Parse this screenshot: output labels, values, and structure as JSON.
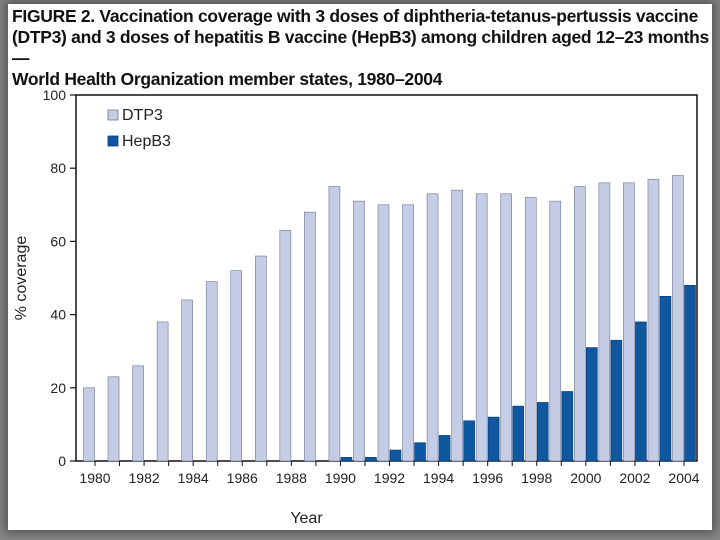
{
  "chart_data": {
    "type": "bar",
    "title": "FIGURE 2. Vaccination coverage with 3 doses of diphtheria-tetanus-pertussis vaccine (DTP3) and 3 doses of hepatitis B vaccine (HepB3) among children aged 12–23 months — World Health Organization member states, 1980–2004",
    "title_lines": [
      "FIGURE 2. Vaccination coverage with 3 doses of diphtheria-tetanus-pertussis vaccine",
      "(DTP3) and 3 doses of hepatitis B vaccine (HepB3) among children aged 12–23 months —",
      "World Health Organization member states, 1980–2004"
    ],
    "xlabel": "Year",
    "ylabel": "% coverage",
    "ylim": [
      0,
      100
    ],
    "yticks": [
      0,
      20,
      40,
      60,
      80,
      100
    ],
    "xtick_labels": [
      "1980",
      "1982",
      "1984",
      "1986",
      "1988",
      "1990",
      "1992",
      "1994",
      "1996",
      "1998",
      "2000",
      "2002",
      "2004"
    ],
    "categories": [
      "1980",
      "1981",
      "1982",
      "1983",
      "1984",
      "1985",
      "1986",
      "1987",
      "1988",
      "1989",
      "1990",
      "1991",
      "1992",
      "1993",
      "1994",
      "1995",
      "1996",
      "1997",
      "1998",
      "1999",
      "2000",
      "2001",
      "2002",
      "2003",
      "2004"
    ],
    "legend_position": "top-left",
    "grid": false,
    "series": [
      {
        "name": "DTP3",
        "color": "#c5cde6",
        "values": [
          20,
          23,
          26,
          38,
          44,
          49,
          52,
          56,
          63,
          68,
          75,
          71,
          70,
          70,
          73,
          74,
          73,
          73,
          72,
          71,
          75,
          76,
          76,
          77,
          78
        ]
      },
      {
        "name": "HepB3",
        "color": "#0f57a0",
        "values": [
          0,
          0,
          0,
          0,
          0,
          0,
          0,
          0,
          0,
          0,
          1,
          1,
          3,
          5,
          7,
          11,
          12,
          15,
          16,
          19,
          31,
          33,
          38,
          45,
          48
        ]
      }
    ]
  }
}
